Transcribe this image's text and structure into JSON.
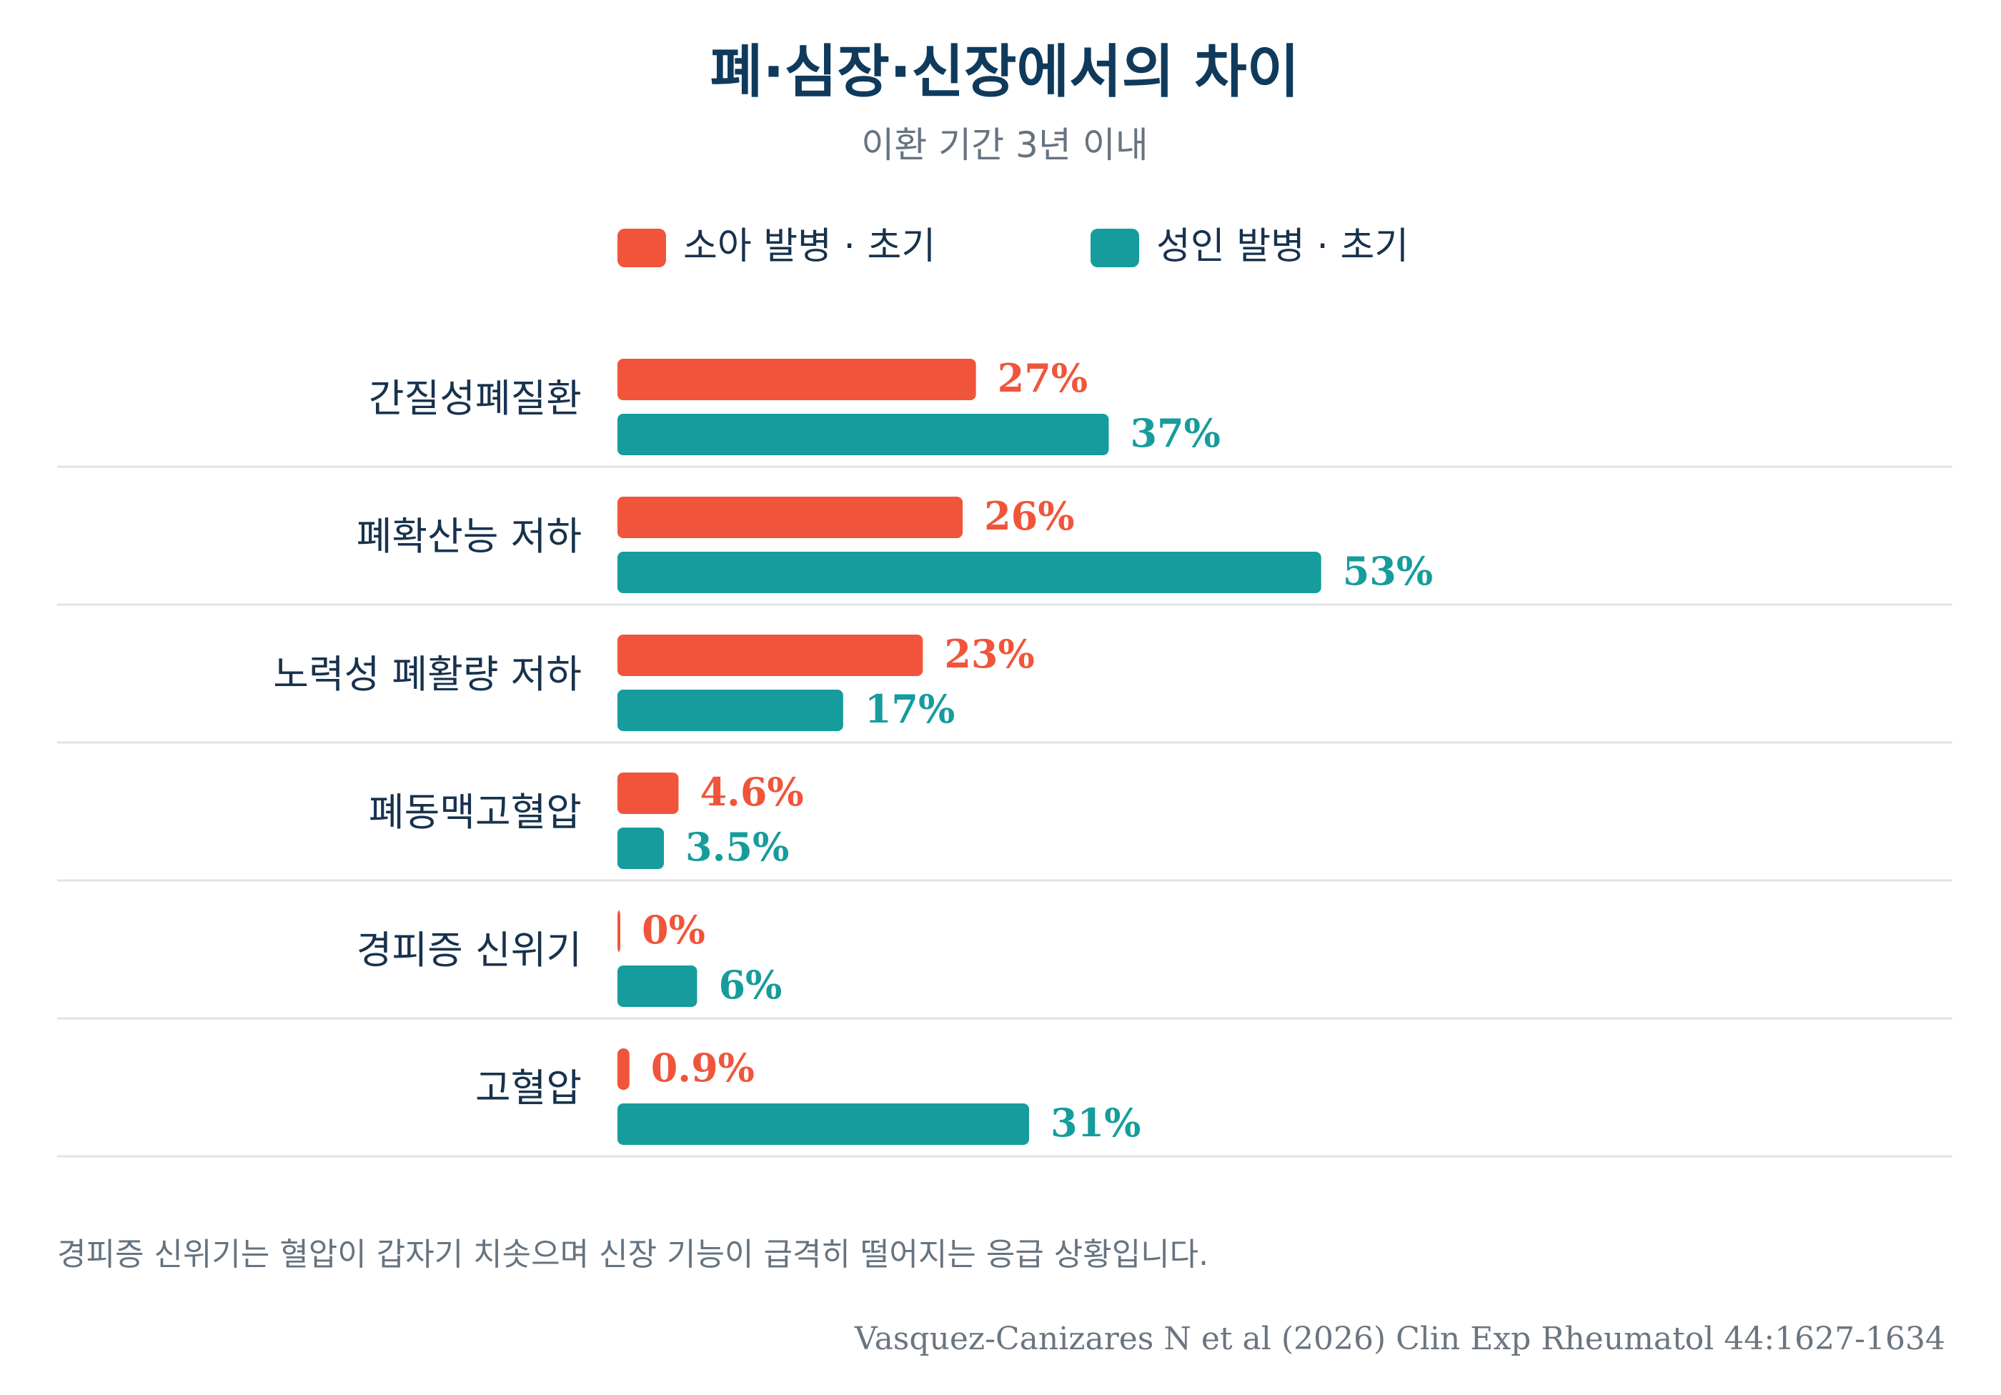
{
  "colors": {
    "title": "#0f3a5c",
    "subtitle": "#667380",
    "category": "#17324d",
    "separator": "#e3e3e3",
    "note": "#667380",
    "source": "#6b7580"
  },
  "chart_data": {
    "type": "bar",
    "orientation": "horizontal",
    "title": "폐·심장·신장에서의 차이",
    "subtitle": "이환 기간 3년 이내",
    "legend_position": "top",
    "grid": false,
    "xlim": [
      0,
      100
    ],
    "categories": [
      "간질성폐질환",
      "폐확산능 저하",
      "노력성 폐활량 저하",
      "폐동맥고혈압",
      "경피증 신위기",
      "고혈압"
    ],
    "series": [
      {
        "name": "소아 발병 · 초기",
        "color": "#f0553b",
        "values": [
          27,
          26,
          23,
          4.6,
          0,
          0.9
        ],
        "labels": [
          "27%",
          "26%",
          "23%",
          "4.6%",
          "0%",
          "0.9%"
        ]
      },
      {
        "name": "성인 발병 · 초기",
        "color": "#169c9c",
        "values": [
          37,
          53,
          17,
          3.5,
          6,
          31
        ],
        "labels": [
          "37%",
          "53%",
          "17%",
          "3.5%",
          "6%",
          "31%"
        ]
      }
    ],
    "note": "경피증 신위기는 혈압이 갑자기 치솟으며 신장 기능이 급격히 떨어지는 응급 상황입니다.",
    "source": "Vasquez-Canizares N et al (2026) Clin Exp Rheumatol 44:1627-1634"
  }
}
